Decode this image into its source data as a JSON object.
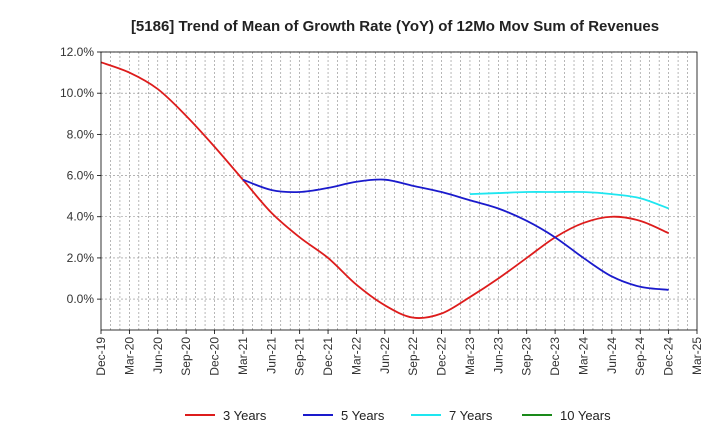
{
  "chart_data": {
    "type": "line",
    "title": "[5186]  Trend of Mean of Growth Rate (YoY) of 12Mo Mov Sum of Revenues",
    "xlabel": "",
    "ylabel": "",
    "ylim": [
      -1.5,
      12.0
    ],
    "yticks": [
      0.0,
      2.0,
      4.0,
      6.0,
      8.0,
      10.0,
      12.0
    ],
    "ytick_labels": [
      "0.0%",
      "2.0%",
      "4.0%",
      "6.0%",
      "8.0%",
      "10.0%",
      "12.0%"
    ],
    "x_range_months": [
      0,
      63
    ],
    "xticks_months": [
      0,
      3,
      6,
      9,
      12,
      15,
      18,
      21,
      24,
      27,
      30,
      33,
      36,
      39,
      42,
      45,
      48,
      51,
      54,
      57,
      60,
      63
    ],
    "xtick_labels": [
      "Dec-19",
      "Mar-20",
      "Jun-20",
      "Sep-20",
      "Dec-20",
      "Mar-21",
      "Jun-21",
      "Sep-21",
      "Dec-21",
      "Mar-22",
      "Jun-22",
      "Sep-22",
      "Dec-22",
      "Mar-23",
      "Jun-23",
      "Sep-23",
      "Dec-23",
      "Mar-24",
      "Jun-24",
      "Sep-24",
      "Dec-24",
      "Mar-25"
    ],
    "grid": true,
    "legend_position": "bottom",
    "series": [
      {
        "name": "3 Years",
        "color": "#dd1c1c",
        "x": [
          0,
          3,
          6,
          9,
          12,
          15,
          18,
          21,
          24,
          27,
          30,
          33,
          36,
          39,
          42,
          45,
          48,
          51,
          54,
          57,
          60
        ],
        "y": [
          11.5,
          11.0,
          10.2,
          8.9,
          7.4,
          5.8,
          4.2,
          3.0,
          2.0,
          0.7,
          -0.3,
          -0.9,
          -0.7,
          0.1,
          1.0,
          2.0,
          3.0,
          3.7,
          4.0,
          3.8,
          3.2
        ]
      },
      {
        "name": "5 Years",
        "color": "#1a1acc",
        "x": [
          15,
          18,
          21,
          24,
          27,
          30,
          33,
          36,
          39,
          42,
          45,
          48,
          51,
          54,
          57,
          60
        ],
        "y": [
          5.8,
          5.3,
          5.2,
          5.4,
          5.7,
          5.8,
          5.5,
          5.2,
          4.8,
          4.4,
          3.8,
          3.0,
          2.0,
          1.1,
          0.6,
          0.45
        ]
      },
      {
        "name": "7 Years",
        "color": "#1ee6f0",
        "x": [
          39,
          42,
          45,
          48,
          51,
          54,
          57,
          60
        ],
        "y": [
          5.1,
          5.15,
          5.2,
          5.2,
          5.2,
          5.1,
          4.9,
          4.4
        ]
      },
      {
        "name": "10 Years",
        "color": "#1a8a1a",
        "x": [],
        "y": []
      }
    ]
  }
}
